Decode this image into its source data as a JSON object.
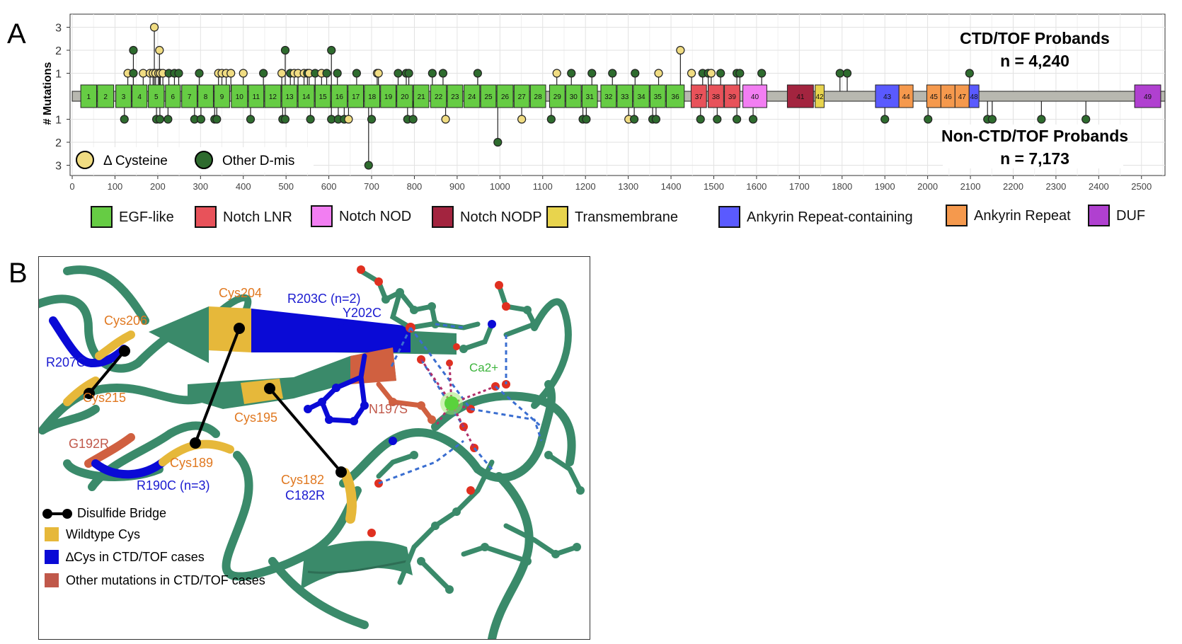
{
  "panelA": {
    "letter": "A",
    "ylabel": "# Mutations",
    "top_title": "CTD/TOF Probands",
    "top_n": "n = 4,240",
    "bottom_title": "Non-CTD/TOF Probands",
    "bottom_n": "n = 7,173",
    "point_legend": [
      {
        "label": "Δ Cysteine",
        "color": "#f0dc82"
      },
      {
        "label": "Other D-mis",
        "color": "#2e6b2e"
      }
    ],
    "domain_legend": [
      {
        "label": "EGF-like",
        "color": "#66cc44"
      },
      {
        "label": "Notch LNR",
        "color": "#e8525a"
      },
      {
        "label": "Notch NOD",
        "color": "#f27ef2"
      },
      {
        "label": "Notch NODP",
        "color": "#a3243f"
      },
      {
        "label": "Transmembrane",
        "color": "#e8d44d"
      },
      {
        "label": "Ankyrin Repeat-containing",
        "color": "#5a5aff"
      },
      {
        "label": "Ankyrin Repeat",
        "color": "#f5994d"
      },
      {
        "label": "DUF",
        "color": "#b040d0"
      }
    ]
  },
  "chart_data": {
    "type": "lollipop",
    "x_ticks": [
      "0",
      "100",
      "200",
      "300",
      "400",
      "500",
      "600",
      "700",
      "800",
      "900",
      "1000",
      "1100",
      "1200",
      "1300",
      "1400",
      "1500",
      "1600",
      "1700",
      "1800",
      "1900",
      "2000",
      "2100",
      "2200",
      "2300",
      "2400",
      "2500"
    ],
    "y_ticks_top": [
      "1",
      "2",
      "3"
    ],
    "y_ticks_bottom": [
      "1",
      "2",
      "3"
    ],
    "xlim": [
      -5,
      2555
    ],
    "protein_length": 2555,
    "domains": [
      {
        "label": "1",
        "start": 20,
        "end": 57,
        "type": "EGF-like"
      },
      {
        "label": "2",
        "start": 59,
        "end": 97,
        "type": "EGF-like"
      },
      {
        "label": "3",
        "start": 102,
        "end": 138,
        "type": "EGF-like"
      },
      {
        "label": "4",
        "start": 140,
        "end": 175,
        "type": "EGF-like"
      },
      {
        "label": "5",
        "start": 178,
        "end": 215,
        "type": "EGF-like"
      },
      {
        "label": "6",
        "start": 218,
        "end": 253,
        "type": "EGF-like"
      },
      {
        "label": "7",
        "start": 256,
        "end": 292,
        "type": "EGF-like"
      },
      {
        "label": "8",
        "start": 294,
        "end": 330,
        "type": "EGF-like"
      },
      {
        "label": "9",
        "start": 332,
        "end": 368,
        "type": "EGF-like"
      },
      {
        "label": "10",
        "start": 372,
        "end": 410,
        "type": "EGF-like"
      },
      {
        "label": "11",
        "start": 412,
        "end": 448,
        "type": "EGF-like"
      },
      {
        "label": "12",
        "start": 450,
        "end": 488,
        "type": "EGF-like"
      },
      {
        "label": "13",
        "start": 490,
        "end": 526,
        "type": "EGF-like"
      },
      {
        "label": "14",
        "start": 528,
        "end": 566,
        "type": "EGF-like"
      },
      {
        "label": "15",
        "start": 568,
        "end": 604,
        "type": "EGF-like"
      },
      {
        "label": "16",
        "start": 606,
        "end": 643,
        "type": "EGF-like"
      },
      {
        "label": "17",
        "start": 645,
        "end": 681,
        "type": "EGF-like"
      },
      {
        "label": "18",
        "start": 683,
        "end": 719,
        "type": "EGF-like"
      },
      {
        "label": "19",
        "start": 721,
        "end": 757,
        "type": "EGF-like"
      },
      {
        "label": "20",
        "start": 759,
        "end": 796,
        "type": "EGF-like"
      },
      {
        "label": "21",
        "start": 798,
        "end": 834,
        "type": "EGF-like"
      },
      {
        "label": "22",
        "start": 838,
        "end": 875,
        "type": "EGF-like"
      },
      {
        "label": "23",
        "start": 877,
        "end": 913,
        "type": "EGF-like"
      },
      {
        "label": "24",
        "start": 916,
        "end": 953,
        "type": "EGF-like"
      },
      {
        "label": "25",
        "start": 955,
        "end": 991,
        "type": "EGF-like"
      },
      {
        "label": "26",
        "start": 993,
        "end": 1031,
        "type": "EGF-like"
      },
      {
        "label": "27",
        "start": 1033,
        "end": 1069,
        "type": "EGF-like"
      },
      {
        "label": "28",
        "start": 1071,
        "end": 1107,
        "type": "EGF-like"
      },
      {
        "label": "29",
        "start": 1116,
        "end": 1152,
        "type": "EGF-like"
      },
      {
        "label": "30",
        "start": 1154,
        "end": 1190,
        "type": "EGF-like"
      },
      {
        "label": "31",
        "start": 1192,
        "end": 1228,
        "type": "EGF-like"
      },
      {
        "label": "32",
        "start": 1236,
        "end": 1272,
        "type": "EGF-like"
      },
      {
        "label": "33",
        "start": 1274,
        "end": 1310,
        "type": "EGF-like"
      },
      {
        "label": "34",
        "start": 1312,
        "end": 1349,
        "type": "EGF-like"
      },
      {
        "label": "35",
        "start": 1351,
        "end": 1387,
        "type": "EGF-like"
      },
      {
        "label": "36",
        "start": 1389,
        "end": 1431,
        "type": "EGF-like"
      },
      {
        "label": "37",
        "start": 1447,
        "end": 1483,
        "type": "Notch LNR"
      },
      {
        "label": "38",
        "start": 1487,
        "end": 1523,
        "type": "Notch LNR"
      },
      {
        "label": "39",
        "start": 1525,
        "end": 1561,
        "type": "Notch LNR"
      },
      {
        "label": "40",
        "start": 1568,
        "end": 1624,
        "type": "Notch NOD"
      },
      {
        "label": "41",
        "start": 1672,
        "end": 1733,
        "type": "Notch NODP"
      },
      {
        "label": "42",
        "start": 1737,
        "end": 1758,
        "type": "Transmembrane"
      },
      {
        "label": "43",
        "start": 1878,
        "end": 1933,
        "type": "Ankyrin Repeat-containing"
      },
      {
        "label": "44",
        "start": 1933,
        "end": 1966,
        "type": "Ankyrin Repeat"
      },
      {
        "label": "45",
        "start": 1998,
        "end": 2031,
        "type": "Ankyrin Repeat"
      },
      {
        "label": "46",
        "start": 2031,
        "end": 2064,
        "type": "Ankyrin Repeat"
      },
      {
        "label": "47",
        "start": 2064,
        "end": 2097,
        "type": "Ankyrin Repeat"
      },
      {
        "label": "48",
        "start": 2097,
        "end": 2120,
        "type": "Ankyrin Repeat-containing"
      },
      {
        "label": "49",
        "start": 2484,
        "end": 2545,
        "type": "DUF"
      }
    ],
    "top_mutations": [
      {
        "pos": 130,
        "n": 1,
        "kind": "cys"
      },
      {
        "pos": 143,
        "n": 1,
        "kind": "other"
      },
      {
        "pos": 143,
        "n": 2,
        "kind": "other"
      },
      {
        "pos": 166,
        "n": 1,
        "kind": "cys"
      },
      {
        "pos": 182,
        "n": 1,
        "kind": "cys"
      },
      {
        "pos": 189,
        "n": 1,
        "kind": "cys"
      },
      {
        "pos": 192,
        "n": 3,
        "kind": "cys"
      },
      {
        "pos": 195,
        "n": 1,
        "kind": "cys"
      },
      {
        "pos": 202,
        "n": 1,
        "kind": "cys"
      },
      {
        "pos": 204,
        "n": 2,
        "kind": "cys"
      },
      {
        "pos": 206,
        "n": 1,
        "kind": "cys"
      },
      {
        "pos": 212,
        "n": 1,
        "kind": "cys"
      },
      {
        "pos": 226,
        "n": 1,
        "kind": "other"
      },
      {
        "pos": 239,
        "n": 1,
        "kind": "other"
      },
      {
        "pos": 249,
        "n": 1,
        "kind": "other"
      },
      {
        "pos": 297,
        "n": 1,
        "kind": "other"
      },
      {
        "pos": 342,
        "n": 1,
        "kind": "cys"
      },
      {
        "pos": 350,
        "n": 1,
        "kind": "cys"
      },
      {
        "pos": 360,
        "n": 1,
        "kind": "cys"
      },
      {
        "pos": 371,
        "n": 1,
        "kind": "cys"
      },
      {
        "pos": 400,
        "n": 1,
        "kind": "cys"
      },
      {
        "pos": 447,
        "n": 1,
        "kind": "other"
      },
      {
        "pos": 490,
        "n": 1,
        "kind": "cys"
      },
      {
        "pos": 498,
        "n": 2,
        "kind": "other"
      },
      {
        "pos": 510,
        "n": 1,
        "kind": "other"
      },
      {
        "pos": 519,
        "n": 1,
        "kind": "cys"
      },
      {
        "pos": 528,
        "n": 1,
        "kind": "cys"
      },
      {
        "pos": 542,
        "n": 1,
        "kind": "cys"
      },
      {
        "pos": 550,
        "n": 1,
        "kind": "other"
      },
      {
        "pos": 554,
        "n": 1,
        "kind": "cys"
      },
      {
        "pos": 568,
        "n": 1,
        "kind": "other"
      },
      {
        "pos": 583,
        "n": 1,
        "kind": "cys"
      },
      {
        "pos": 595,
        "n": 1,
        "kind": "other"
      },
      {
        "pos": 606,
        "n": 2,
        "kind": "other"
      },
      {
        "pos": 620,
        "n": 1,
        "kind": "other"
      },
      {
        "pos": 665,
        "n": 1,
        "kind": "other"
      },
      {
        "pos": 713,
        "n": 1,
        "kind": "cys"
      },
      {
        "pos": 716,
        "n": 1,
        "kind": "cys"
      },
      {
        "pos": 762,
        "n": 1,
        "kind": "other"
      },
      {
        "pos": 781,
        "n": 1,
        "kind": "other"
      },
      {
        "pos": 787,
        "n": 1,
        "kind": "other"
      },
      {
        "pos": 842,
        "n": 1,
        "kind": "other"
      },
      {
        "pos": 867,
        "n": 1,
        "kind": "other"
      },
      {
        "pos": 948,
        "n": 1,
        "kind": "other"
      },
      {
        "pos": 1133,
        "n": 1,
        "kind": "cys"
      },
      {
        "pos": 1167,
        "n": 1,
        "kind": "other"
      },
      {
        "pos": 1215,
        "n": 1,
        "kind": "other"
      },
      {
        "pos": 1263,
        "n": 1,
        "kind": "other"
      },
      {
        "pos": 1316,
        "n": 1,
        "kind": "other"
      },
      {
        "pos": 1371,
        "n": 1,
        "kind": "cys"
      },
      {
        "pos": 1422,
        "n": 2,
        "kind": "cys"
      },
      {
        "pos": 1448,
        "n": 1,
        "kind": "cys"
      },
      {
        "pos": 1474,
        "n": 1,
        "kind": "other"
      },
      {
        "pos": 1487,
        "n": 1,
        "kind": "other"
      },
      {
        "pos": 1494,
        "n": 1,
        "kind": "cys"
      },
      {
        "pos": 1516,
        "n": 1,
        "kind": "other"
      },
      {
        "pos": 1554,
        "n": 1,
        "kind": "other"
      },
      {
        "pos": 1561,
        "n": 1,
        "kind": "other"
      },
      {
        "pos": 1612,
        "n": 1,
        "kind": "other"
      },
      {
        "pos": 1795,
        "n": 1,
        "kind": "other"
      },
      {
        "pos": 1812,
        "n": 1,
        "kind": "other"
      },
      {
        "pos": 2098,
        "n": 1,
        "kind": "other"
      }
    ],
    "bottom_mutations": [
      {
        "pos": 122,
        "n": 1,
        "kind": "other"
      },
      {
        "pos": 197,
        "n": 1,
        "kind": "other"
      },
      {
        "pos": 205,
        "n": 1,
        "kind": "other"
      },
      {
        "pos": 224,
        "n": 1,
        "kind": "other"
      },
      {
        "pos": 286,
        "n": 1,
        "kind": "other"
      },
      {
        "pos": 301,
        "n": 1,
        "kind": "other"
      },
      {
        "pos": 333,
        "n": 1,
        "kind": "other"
      },
      {
        "pos": 338,
        "n": 1,
        "kind": "other"
      },
      {
        "pos": 417,
        "n": 1,
        "kind": "other"
      },
      {
        "pos": 492,
        "n": 1,
        "kind": "other"
      },
      {
        "pos": 498,
        "n": 1,
        "kind": "other"
      },
      {
        "pos": 557,
        "n": 1,
        "kind": "other"
      },
      {
        "pos": 606,
        "n": 1,
        "kind": "other"
      },
      {
        "pos": 622,
        "n": 1,
        "kind": "other"
      },
      {
        "pos": 636,
        "n": 1,
        "kind": "other"
      },
      {
        "pos": 646,
        "n": 1,
        "kind": "cys"
      },
      {
        "pos": 693,
        "n": 3,
        "kind": "other"
      },
      {
        "pos": 700,
        "n": 1,
        "kind": "other"
      },
      {
        "pos": 784,
        "n": 1,
        "kind": "other"
      },
      {
        "pos": 797,
        "n": 1,
        "kind": "other"
      },
      {
        "pos": 873,
        "n": 1,
        "kind": "cys"
      },
      {
        "pos": 995,
        "n": 2,
        "kind": "other"
      },
      {
        "pos": 1051,
        "n": 1,
        "kind": "cys"
      },
      {
        "pos": 1120,
        "n": 1,
        "kind": "other"
      },
      {
        "pos": 1194,
        "n": 1,
        "kind": "other"
      },
      {
        "pos": 1202,
        "n": 1,
        "kind": "other"
      },
      {
        "pos": 1301,
        "n": 1,
        "kind": "cys"
      },
      {
        "pos": 1314,
        "n": 1,
        "kind": "other"
      },
      {
        "pos": 1357,
        "n": 1,
        "kind": "other"
      },
      {
        "pos": 1365,
        "n": 1,
        "kind": "other"
      },
      {
        "pos": 1469,
        "n": 1,
        "kind": "other"
      },
      {
        "pos": 1508,
        "n": 1,
        "kind": "other"
      },
      {
        "pos": 1554,
        "n": 1,
        "kind": "other"
      },
      {
        "pos": 1592,
        "n": 1,
        "kind": "other"
      },
      {
        "pos": 1900,
        "n": 1,
        "kind": "other"
      },
      {
        "pos": 2001,
        "n": 1,
        "kind": "other"
      },
      {
        "pos": 2140,
        "n": 1,
        "kind": "other"
      },
      {
        "pos": 2151,
        "n": 1,
        "kind": "other"
      },
      {
        "pos": 2266,
        "n": 1,
        "kind": "other"
      },
      {
        "pos": 2370,
        "n": 1,
        "kind": "other"
      }
    ]
  },
  "panelB": {
    "letter": "B",
    "labels": {
      "cys204": "Cys204",
      "r203c": "R203C (n=2)",
      "y202c": "Y202C",
      "cys206": "Cys206",
      "r207c": "R207C",
      "cys215": "Cys215",
      "ca2": "Ca2+",
      "cys195": "Cys195",
      "n197s": "N197S",
      "g192r": "G192R",
      "cys189": "Cys189",
      "r190c": "R190C (n=3)",
      "cys182": "Cys182",
      "c182r": "C182R"
    },
    "legend": [
      {
        "label": "Disulfide Bridge",
        "kind": "bridge",
        "color": "#000000"
      },
      {
        "label": "Wildtype Cys",
        "kind": "swatch",
        "color": "#e6b83a"
      },
      {
        "label": "∆Cys in CTD/TOF cases",
        "kind": "swatch",
        "color": "#0a0ad6"
      },
      {
        "label": "Other mutations in CTD/TOF cases",
        "kind": "swatch",
        "color": "#c0584a"
      }
    ],
    "colors": {
      "ribbon": "#3a8a6a",
      "wildtype_cys": "#e6b83a",
      "delta_cys": "#0a0ad6",
      "other_mut": "#d06040",
      "orange_text": "#e07820",
      "blue_text": "#1a1ad0",
      "red_text": "#c0584a",
      "green_text": "#3cb43c",
      "oxygen": "#e03020"
    }
  }
}
